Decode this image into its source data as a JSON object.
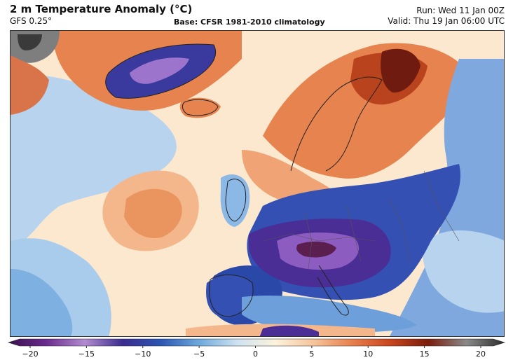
{
  "header": {
    "title": "2 m Temperature Anomaly (°C)",
    "model": "GFS 0.25°",
    "base": "Base: CFSR 1981-2010 climatology",
    "run": "Run: Wed 11 Jan 00Z",
    "valid": "Valid: Thu 19 Jan 06:00 UTC"
  },
  "colorbar": {
    "min": -20,
    "max": 20,
    "tick_labels": [
      "−20",
      "−15",
      "−10",
      "−5",
      "0",
      "5",
      "10",
      "15",
      "20"
    ],
    "stops": [
      "#3b0f4f",
      "#6a2c8f",
      "#b38cd0",
      "#3b2c8f",
      "#2c56b3",
      "#6ea9dc",
      "#cfe3f2",
      "#fdf2dc",
      "#f6c49b",
      "#e8804d",
      "#c9451e",
      "#7a1d0d",
      "#8a8a8a",
      "#2b2b2b"
    ]
  },
  "map": {
    "colors": {
      "ocean_neutral": "#fbe8cf",
      "light_blue": "#a9cbec",
      "mid_blue": "#5a8fd4",
      "deep_blue": "#2a48a8",
      "purple": "#4a2d95",
      "violet": "#8d5cc1",
      "light_orange": "#f4b78c",
      "orange": "#e7834f",
      "red": "#b8431d",
      "dark_red": "#6f1b10",
      "gray": "#7e7e7e"
    }
  }
}
